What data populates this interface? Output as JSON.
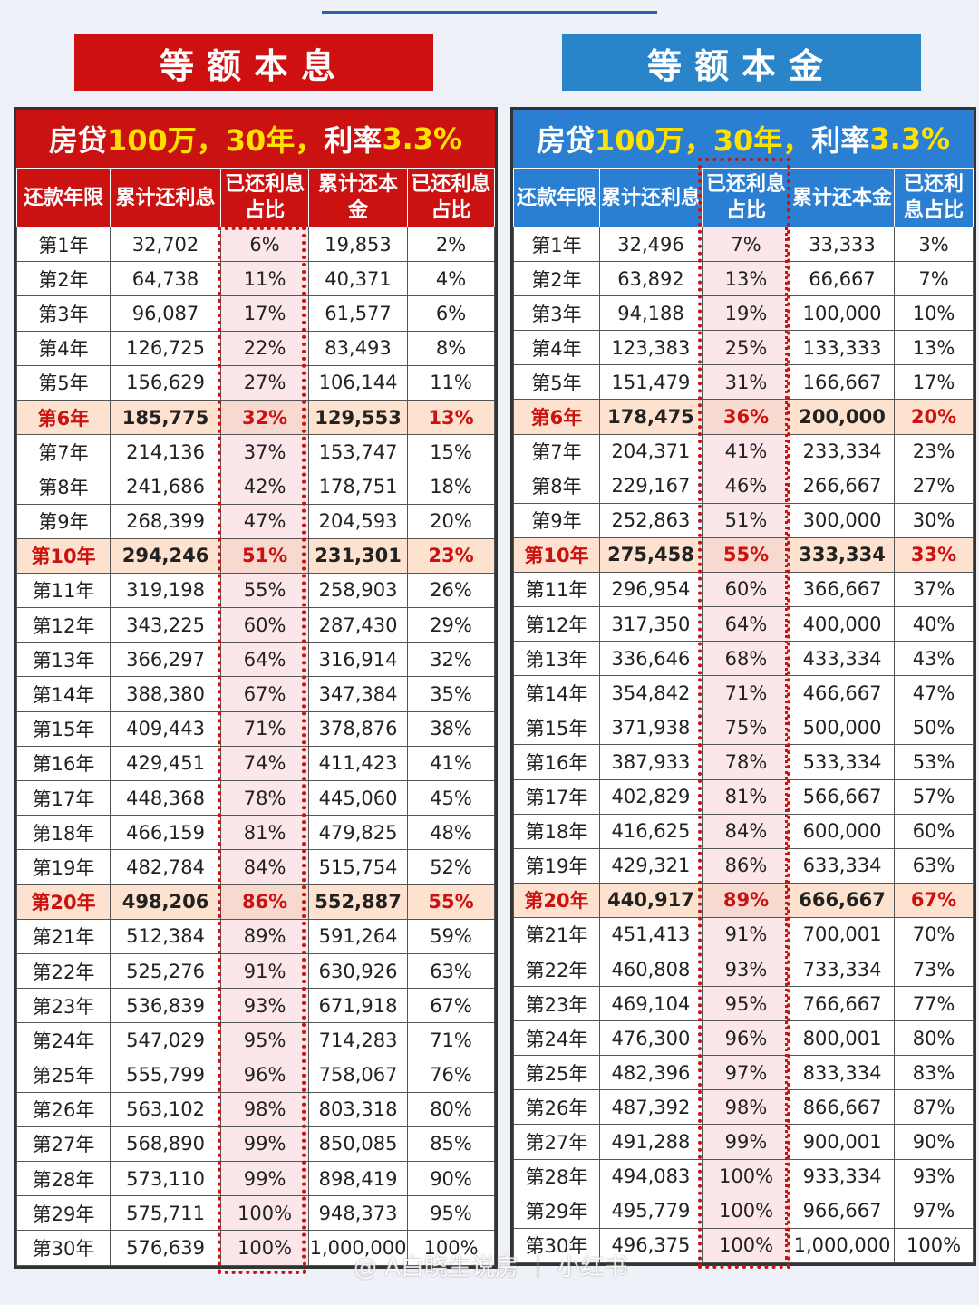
{
  "left": {
    "badge": "等额本息",
    "banner": {
      "a": "房贷",
      "b": "100万，30年，",
      "c": "利率",
      "d": "3.3%"
    },
    "headers": [
      "还款年限",
      "累计还利息",
      "已还利息占比",
      "累计还本金",
      "已还利息占比"
    ],
    "rows": [
      [
        "第1年",
        "32,702",
        "6%",
        "19,853",
        "2%"
      ],
      [
        "第2年",
        "64,738",
        "11%",
        "40,371",
        "4%"
      ],
      [
        "第3年",
        "96,087",
        "17%",
        "61,577",
        "6%"
      ],
      [
        "第4年",
        "126,725",
        "22%",
        "83,493",
        "8%"
      ],
      [
        "第5年",
        "156,629",
        "27%",
        "106,144",
        "11%"
      ],
      [
        "第6年",
        "185,775",
        "32%",
        "129,553",
        "13%"
      ],
      [
        "第7年",
        "214,136",
        "37%",
        "153,747",
        "15%"
      ],
      [
        "第8年",
        "241,686",
        "42%",
        "178,751",
        "18%"
      ],
      [
        "第9年",
        "268,399",
        "47%",
        "204,593",
        "20%"
      ],
      [
        "第10年",
        "294,246",
        "51%",
        "231,301",
        "23%"
      ],
      [
        "第11年",
        "319,198",
        "55%",
        "258,903",
        "26%"
      ],
      [
        "第12年",
        "343,225",
        "60%",
        "287,430",
        "29%"
      ],
      [
        "第13年",
        "366,297",
        "64%",
        "316,914",
        "32%"
      ],
      [
        "第14年",
        "388,380",
        "67%",
        "347,384",
        "35%"
      ],
      [
        "第15年",
        "409,443",
        "71%",
        "378,876",
        "38%"
      ],
      [
        "第16年",
        "429,451",
        "74%",
        "411,423",
        "41%"
      ],
      [
        "第17年",
        "448,368",
        "78%",
        "445,060",
        "45%"
      ],
      [
        "第18年",
        "466,159",
        "81%",
        "479,825",
        "48%"
      ],
      [
        "第19年",
        "482,784",
        "84%",
        "515,754",
        "52%"
      ],
      [
        "第20年",
        "498,206",
        "86%",
        "552,887",
        "55%"
      ],
      [
        "第21年",
        "512,384",
        "89%",
        "591,264",
        "59%"
      ],
      [
        "第22年",
        "525,276",
        "91%",
        "630,926",
        "63%"
      ],
      [
        "第23年",
        "536,839",
        "93%",
        "671,918",
        "67%"
      ],
      [
        "第24年",
        "547,029",
        "95%",
        "714,283",
        "71%"
      ],
      [
        "第25年",
        "555,799",
        "96%",
        "758,067",
        "76%"
      ],
      [
        "第26年",
        "563,102",
        "98%",
        "803,318",
        "80%"
      ],
      [
        "第27年",
        "568,890",
        "99%",
        "850,085",
        "85%"
      ],
      [
        "第28年",
        "573,110",
        "99%",
        "898,419",
        "90%"
      ],
      [
        "第29年",
        "575,711",
        "100%",
        "948,373",
        "95%"
      ],
      [
        "第30年",
        "576,639",
        "100%",
        "1,000,000",
        "100%"
      ]
    ]
  },
  "right": {
    "badge": "等额本金",
    "banner": {
      "a": "房贷",
      "b": "100万，30年，",
      "c": "利率",
      "d": "3.3%"
    },
    "headers": [
      "还款年限",
      "累计还利息",
      "已还利息占比",
      "累计还本金",
      "已还利息占比"
    ],
    "rows": [
      [
        "第1年",
        "32,496",
        "7%",
        "33,333",
        "3%"
      ],
      [
        "第2年",
        "63,892",
        "13%",
        "66,667",
        "7%"
      ],
      [
        "第3年",
        "94,188",
        "19%",
        "100,000",
        "10%"
      ],
      [
        "第4年",
        "123,383",
        "25%",
        "133,333",
        "13%"
      ],
      [
        "第5年",
        "151,479",
        "31%",
        "166,667",
        "17%"
      ],
      [
        "第6年",
        "178,475",
        "36%",
        "200,000",
        "20%"
      ],
      [
        "第7年",
        "204,371",
        "41%",
        "233,334",
        "23%"
      ],
      [
        "第8年",
        "229,167",
        "46%",
        "266,667",
        "27%"
      ],
      [
        "第9年",
        "252,863",
        "51%",
        "300,000",
        "30%"
      ],
      [
        "第10年",
        "275,458",
        "55%",
        "333,334",
        "33%"
      ],
      [
        "第11年",
        "296,954",
        "60%",
        "366,667",
        "37%"
      ],
      [
        "第12年",
        "317,350",
        "64%",
        "400,000",
        "40%"
      ],
      [
        "第13年",
        "336,646",
        "68%",
        "433,334",
        "43%"
      ],
      [
        "第14年",
        "354,842",
        "71%",
        "466,667",
        "47%"
      ],
      [
        "第15年",
        "371,938",
        "75%",
        "500,000",
        "50%"
      ],
      [
        "第16年",
        "387,933",
        "78%",
        "533,334",
        "53%"
      ],
      [
        "第17年",
        "402,829",
        "81%",
        "566,667",
        "57%"
      ],
      [
        "第18年",
        "416,625",
        "84%",
        "600,000",
        "60%"
      ],
      [
        "第19年",
        "429,321",
        "86%",
        "633,334",
        "63%"
      ],
      [
        "第20年",
        "440,917",
        "89%",
        "666,667",
        "67%"
      ],
      [
        "第21年",
        "451,413",
        "91%",
        "700,001",
        "70%"
      ],
      [
        "第22年",
        "460,808",
        "93%",
        "733,334",
        "73%"
      ],
      [
        "第23年",
        "469,104",
        "95%",
        "766,667",
        "77%"
      ],
      [
        "第24年",
        "476,300",
        "96%",
        "800,001",
        "80%"
      ],
      [
        "第25年",
        "482,396",
        "97%",
        "833,334",
        "83%"
      ],
      [
        "第26年",
        "487,392",
        "98%",
        "866,667",
        "87%"
      ],
      [
        "第27年",
        "491,288",
        "99%",
        "900,001",
        "90%"
      ],
      [
        "第28年",
        "494,083",
        "100%",
        "933,334",
        "93%"
      ],
      [
        "第29年",
        "495,779",
        "100%",
        "966,667",
        "97%"
      ],
      [
        "第30年",
        "496,375",
        "100%",
        "1,000,000",
        "100%"
      ]
    ]
  },
  "highlight_rows": [
    5,
    9,
    19
  ],
  "watermark": "@ A白晓生说房 ｜ 小红书"
}
